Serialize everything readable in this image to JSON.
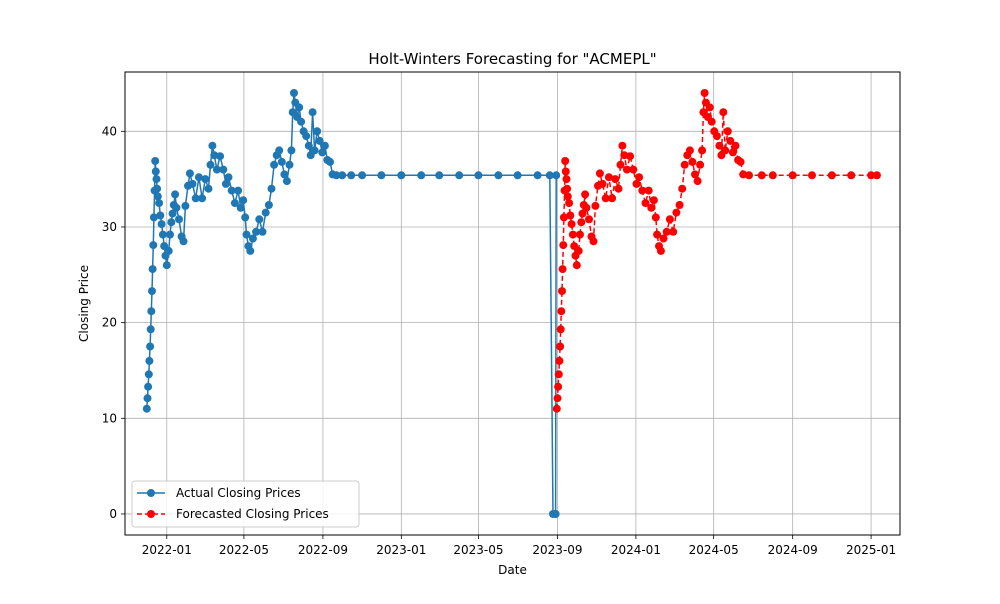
{
  "chart_data": {
    "type": "line",
    "title": "Holt-Winters Forecasting for \"ACMEPL\"",
    "xlabel": "Date",
    "ylabel": "Closing Price",
    "xlim": [
      "2021-10-28",
      "2025-02-15"
    ],
    "ylim": [
      -2.2,
      46.2
    ],
    "grid": true,
    "legend_position": "lower-left",
    "x_ticks": [
      "2022-01",
      "2022-05",
      "2022-09",
      "2023-01",
      "2023-05",
      "2023-09",
      "2024-01",
      "2024-05",
      "2024-09",
      "2025-01"
    ],
    "y_ticks": [
      0,
      10,
      20,
      30,
      40
    ],
    "series": [
      {
        "name": "Actual Closing Prices",
        "color": "#1f77b4",
        "linestyle": "solid",
        "marker": "circle",
        "points": [
          [
            "2021-12-01",
            11.0
          ],
          [
            "2021-12-02",
            12.1
          ],
          [
            "2021-12-03",
            13.3
          ],
          [
            "2021-12-04",
            14.6
          ],
          [
            "2021-12-05",
            16.0
          ],
          [
            "2021-12-06",
            17.5
          ],
          [
            "2021-12-07",
            19.3
          ],
          [
            "2021-12-08",
            21.2
          ],
          [
            "2021-12-09",
            23.3
          ],
          [
            "2021-12-10",
            25.6
          ],
          [
            "2021-12-11",
            28.1
          ],
          [
            "2021-12-12",
            31.0
          ],
          [
            "2021-12-13",
            33.8
          ],
          [
            "2021-12-14",
            36.9
          ],
          [
            "2021-12-15",
            35.8
          ],
          [
            "2021-12-16",
            35.0
          ],
          [
            "2021-12-17",
            34.0
          ],
          [
            "2021-12-18",
            33.2
          ],
          [
            "2021-12-20",
            32.5
          ],
          [
            "2021-12-22",
            31.2
          ],
          [
            "2021-12-24",
            30.3
          ],
          [
            "2021-12-26",
            29.2
          ],
          [
            "2021-12-28",
            28.0
          ],
          [
            "2021-12-30",
            27.0
          ],
          [
            "2022-01-01",
            26.0
          ],
          [
            "2022-01-04",
            27.5
          ],
          [
            "2022-01-06",
            29.2
          ],
          [
            "2022-01-08",
            30.5
          ],
          [
            "2022-01-10",
            31.4
          ],
          [
            "2022-01-12",
            32.3
          ],
          [
            "2022-01-14",
            33.4
          ],
          [
            "2022-01-16",
            32.0
          ],
          [
            "2022-01-20",
            30.8
          ],
          [
            "2022-01-24",
            29.0
          ],
          [
            "2022-01-27",
            28.5
          ],
          [
            "2022-01-30",
            32.2
          ],
          [
            "2022-02-03",
            34.3
          ],
          [
            "2022-02-06",
            35.6
          ],
          [
            "2022-02-10",
            34.5
          ],
          [
            "2022-02-15",
            33.0
          ],
          [
            "2022-02-20",
            35.2
          ],
          [
            "2022-02-25",
            33.0
          ],
          [
            "2022-03-02",
            35.0
          ],
          [
            "2022-03-07",
            34.0
          ],
          [
            "2022-03-10",
            36.5
          ],
          [
            "2022-03-13",
            38.5
          ],
          [
            "2022-03-16",
            37.5
          ],
          [
            "2022-03-20",
            36.0
          ],
          [
            "2022-03-25",
            37.4
          ],
          [
            "2022-03-30",
            36.0
          ],
          [
            "2022-04-03",
            34.5
          ],
          [
            "2022-04-07",
            35.2
          ],
          [
            "2022-04-12",
            33.8
          ],
          [
            "2022-04-17",
            32.5
          ],
          [
            "2022-04-22",
            33.8
          ],
          [
            "2022-04-26",
            32.0
          ],
          [
            "2022-04-30",
            32.8
          ],
          [
            "2022-05-03",
            31.0
          ],
          [
            "2022-05-05",
            29.2
          ],
          [
            "2022-05-08",
            28.0
          ],
          [
            "2022-05-11",
            27.5
          ],
          [
            "2022-05-15",
            28.8
          ],
          [
            "2022-05-20",
            29.5
          ],
          [
            "2022-05-25",
            30.8
          ],
          [
            "2022-05-30",
            29.5
          ],
          [
            "2022-06-04",
            31.5
          ],
          [
            "2022-06-09",
            32.3
          ],
          [
            "2022-06-13",
            34.0
          ],
          [
            "2022-06-17",
            36.5
          ],
          [
            "2022-06-21",
            37.5
          ],
          [
            "2022-06-25",
            38.0
          ],
          [
            "2022-06-29",
            36.8
          ],
          [
            "2022-07-03",
            35.5
          ],
          [
            "2022-07-07",
            34.8
          ],
          [
            "2022-07-11",
            36.5
          ],
          [
            "2022-07-14",
            38.0
          ],
          [
            "2022-07-16",
            42.0
          ],
          [
            "2022-07-18",
            44.0
          ],
          [
            "2022-07-20",
            43.0
          ],
          [
            "2022-07-23",
            41.5
          ],
          [
            "2022-07-26",
            42.5
          ],
          [
            "2022-07-29",
            41.0
          ],
          [
            "2022-08-02",
            40.0
          ],
          [
            "2022-08-06",
            39.5
          ],
          [
            "2022-08-10",
            38.5
          ],
          [
            "2022-08-13",
            37.5
          ],
          [
            "2022-08-16",
            42.0
          ],
          [
            "2022-08-19",
            38.0
          ],
          [
            "2022-08-23",
            40.0
          ],
          [
            "2022-08-27",
            39.0
          ],
          [
            "2022-08-31",
            37.8
          ],
          [
            "2022-09-04",
            38.5
          ],
          [
            "2022-09-08",
            37.0
          ],
          [
            "2022-09-12",
            36.8
          ],
          [
            "2022-09-16",
            35.5
          ],
          [
            "2022-09-22",
            35.4
          ],
          [
            "2022-10-01",
            35.4
          ],
          [
            "2022-10-15",
            35.4
          ],
          [
            "2022-11-01",
            35.4
          ],
          [
            "2022-12-01",
            35.4
          ],
          [
            "2023-01-01",
            35.4
          ],
          [
            "2023-02-01",
            35.4
          ],
          [
            "2023-03-01",
            35.4
          ],
          [
            "2023-04-01",
            35.4
          ],
          [
            "2023-05-01",
            35.4
          ],
          [
            "2023-06-01",
            35.4
          ],
          [
            "2023-07-01",
            35.4
          ],
          [
            "2023-08-01",
            35.4
          ],
          [
            "2023-08-20",
            35.4
          ],
          [
            "2023-08-25",
            0.0
          ],
          [
            "2023-08-29",
            0.0
          ],
          [
            "2023-08-30",
            35.4
          ]
        ]
      },
      {
        "name": "Forecasted Closing Prices",
        "color": "#ff0000",
        "linestyle": "dashed",
        "marker": "circle",
        "points": [
          [
            "2023-08-31",
            11.0
          ],
          [
            "2023-09-01",
            12.1
          ],
          [
            "2023-09-02",
            13.3
          ],
          [
            "2023-09-03",
            14.6
          ],
          [
            "2023-09-04",
            16.0
          ],
          [
            "2023-09-05",
            17.5
          ],
          [
            "2023-09-06",
            19.3
          ],
          [
            "2023-09-07",
            21.2
          ],
          [
            "2023-09-08",
            23.3
          ],
          [
            "2023-09-09",
            25.6
          ],
          [
            "2023-09-10",
            28.1
          ],
          [
            "2023-09-11",
            31.0
          ],
          [
            "2023-09-12",
            33.8
          ],
          [
            "2023-09-13",
            36.9
          ],
          [
            "2023-09-14",
            35.8
          ],
          [
            "2023-09-15",
            35.0
          ],
          [
            "2023-09-16",
            34.0
          ],
          [
            "2023-09-17",
            33.2
          ],
          [
            "2023-09-19",
            32.5
          ],
          [
            "2023-09-21",
            31.2
          ],
          [
            "2023-09-23",
            30.3
          ],
          [
            "2023-09-25",
            29.2
          ],
          [
            "2023-09-27",
            28.0
          ],
          [
            "2023-09-29",
            27.0
          ],
          [
            "2023-10-01",
            26.0
          ],
          [
            "2023-10-04",
            27.5
          ],
          [
            "2023-10-06",
            29.2
          ],
          [
            "2023-10-08",
            30.5
          ],
          [
            "2023-10-10",
            31.4
          ],
          [
            "2023-10-12",
            32.3
          ],
          [
            "2023-10-14",
            33.4
          ],
          [
            "2023-10-16",
            32.0
          ],
          [
            "2023-10-20",
            30.8
          ],
          [
            "2023-10-24",
            29.0
          ],
          [
            "2023-10-27",
            28.5
          ],
          [
            "2023-10-30",
            32.2
          ],
          [
            "2023-11-03",
            34.3
          ],
          [
            "2023-11-06",
            35.6
          ],
          [
            "2023-11-10",
            34.5
          ],
          [
            "2023-11-15",
            33.0
          ],
          [
            "2023-11-20",
            35.2
          ],
          [
            "2023-11-25",
            33.0
          ],
          [
            "2023-11-30",
            35.0
          ],
          [
            "2023-12-05",
            34.0
          ],
          [
            "2023-12-08",
            36.5
          ],
          [
            "2023-12-11",
            38.5
          ],
          [
            "2023-12-14",
            37.5
          ],
          [
            "2023-12-18",
            36.0
          ],
          [
            "2023-12-23",
            37.4
          ],
          [
            "2023-12-28",
            36.0
          ],
          [
            "2024-01-02",
            34.5
          ],
          [
            "2024-01-06",
            35.2
          ],
          [
            "2024-01-11",
            33.8
          ],
          [
            "2024-01-16",
            32.5
          ],
          [
            "2024-01-21",
            33.8
          ],
          [
            "2024-01-25",
            32.0
          ],
          [
            "2024-01-29",
            32.8
          ],
          [
            "2024-02-01",
            31.0
          ],
          [
            "2024-02-03",
            29.2
          ],
          [
            "2024-02-06",
            28.0
          ],
          [
            "2024-02-09",
            27.5
          ],
          [
            "2024-02-13",
            28.8
          ],
          [
            "2024-02-18",
            29.5
          ],
          [
            "2024-02-23",
            30.8
          ],
          [
            "2024-02-28",
            29.5
          ],
          [
            "2024-03-04",
            31.5
          ],
          [
            "2024-03-09",
            32.3
          ],
          [
            "2024-03-13",
            34.0
          ],
          [
            "2024-03-17",
            36.5
          ],
          [
            "2024-03-21",
            37.5
          ],
          [
            "2024-03-25",
            38.0
          ],
          [
            "2024-03-29",
            36.8
          ],
          [
            "2024-04-02",
            35.5
          ],
          [
            "2024-04-06",
            34.8
          ],
          [
            "2024-04-10",
            36.5
          ],
          [
            "2024-04-13",
            38.0
          ],
          [
            "2024-04-15",
            42.0
          ],
          [
            "2024-04-17",
            44.0
          ],
          [
            "2024-04-19",
            43.0
          ],
          [
            "2024-04-22",
            41.5
          ],
          [
            "2024-04-25",
            42.5
          ],
          [
            "2024-04-28",
            41.0
          ],
          [
            "2024-05-02",
            40.0
          ],
          [
            "2024-05-06",
            39.5
          ],
          [
            "2024-05-10",
            38.5
          ],
          [
            "2024-05-13",
            37.5
          ],
          [
            "2024-05-16",
            42.0
          ],
          [
            "2024-05-19",
            38.0
          ],
          [
            "2024-05-23",
            40.0
          ],
          [
            "2024-05-27",
            39.0
          ],
          [
            "2024-05-31",
            37.8
          ],
          [
            "2024-06-04",
            38.5
          ],
          [
            "2024-06-08",
            37.0
          ],
          [
            "2024-06-12",
            36.8
          ],
          [
            "2024-06-16",
            35.5
          ],
          [
            "2024-06-25",
            35.4
          ],
          [
            "2024-07-15",
            35.4
          ],
          [
            "2024-08-01",
            35.4
          ],
          [
            "2024-09-01",
            35.4
          ],
          [
            "2024-10-01",
            35.4
          ],
          [
            "2024-11-01",
            35.4
          ],
          [
            "2024-12-01",
            35.4
          ],
          [
            "2025-01-01",
            35.4
          ],
          [
            "2025-01-10",
            35.4
          ]
        ]
      }
    ]
  }
}
